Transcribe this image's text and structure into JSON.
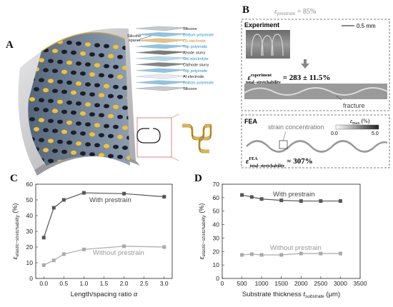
{
  "panels": {
    "A": "A",
    "B": "B",
    "C": "C",
    "D": "D"
  },
  "panelA": {
    "layers": [
      {
        "text": "Silicone",
        "color": "#222222"
      },
      {
        "text": "Bottom polyimide",
        "color": "#1a8fd0"
      },
      {
        "text": "Cu electrode",
        "color": "#d08a1a"
      },
      {
        "text": "Top polyimide",
        "color": "#1a8fd0"
      },
      {
        "text": "Anode slurry",
        "color": "#222222"
      },
      {
        "text": "Gel electrolyte",
        "color": "#1a8fd0"
      },
      {
        "text": "Cathode slurry",
        "color": "#222222"
      },
      {
        "text": "Top polyimide",
        "color": "#1a8fd0"
      },
      {
        "text": "Al electrode",
        "color": "#222222"
      },
      {
        "text": "Bottom polyimide",
        "color": "#1a8fd0"
      },
      {
        "text": "Silicone",
        "color": "#222222"
      }
    ],
    "spacer_label_1": "Silicone",
    "spacer_label_2": "spacer"
  },
  "panelB": {
    "prestrain_symbol": "ε",
    "prestrain_sub": "prestrain",
    "prestrain_value": " = 85%",
    "experiment_title": "Experiment",
    "scale_bar": "0.5 mm",
    "exp_sup": "experiment",
    "exp_sub": "total−stretchability",
    "exp_value": " = 283 ± 11.5%",
    "fracture_label": "fracture",
    "fea_title": "FEA",
    "strain_concentration": "strain concentration",
    "cb_label": "ε",
    "cb_sub": "max",
    "cb_unit": " (%)",
    "cb_min": "0.0",
    "cb_max": "5.0",
    "fea_sup": "FEA",
    "fea_sub": "total−stretchability",
    "fea_value": " = 307%"
  },
  "chart_data": [
    {
      "type": "line",
      "xlabel_main": "Length/spacing ratio ",
      "xlabel_symbol": "α",
      "ylabel_symbol": "ε",
      "ylabel_sub": "elastic−stretchability",
      "ylabel_unit": " (%)",
      "xlim": [
        -0.2,
        3.2
      ],
      "ylim": [
        0,
        60
      ],
      "xticks": [
        0.0,
        0.5,
        1.0,
        1.5,
        2.0,
        2.5,
        3.0
      ],
      "xtick_labels": [
        "0.0",
        "0.5",
        "1.0",
        "1.5",
        "2.0",
        "2.5",
        "3.0"
      ],
      "yticks": [
        0,
        10,
        20,
        30,
        40,
        50,
        60
      ],
      "grid": false,
      "series": [
        {
          "name": "With prestrain",
          "color": "#555555",
          "x": [
            0.0,
            0.25,
            0.5,
            1.0,
            2.0,
            3.0
          ],
          "y": [
            26,
            45,
            50,
            54.5,
            54,
            52
          ]
        },
        {
          "name": "Without prestrain",
          "color": "#aaaaaa",
          "x": [
            0.0,
            0.25,
            0.5,
            1.0,
            2.0,
            3.0
          ],
          "y": [
            8.5,
            11.5,
            15.5,
            18.5,
            20.5,
            20
          ]
        }
      ]
    },
    {
      "type": "line",
      "xlabel_main": "Substrate thickness ",
      "xlabel_symbol": "t",
      "xlabel_sub": "substrate",
      "xlabel_unit": " (μm)",
      "ylabel_symbol": "ε",
      "ylabel_sub": "elastic−stretchability",
      "ylabel_unit": " (%)",
      "xlim": [
        0,
        3500
      ],
      "ylim": [
        0,
        70
      ],
      "xticks": [
        0,
        500,
        1000,
        1500,
        2000,
        2500,
        3000,
        3500
      ],
      "xtick_labels": [
        "0",
        "500",
        "1000",
        "1500",
        "2000",
        "2500",
        "3000",
        "3500"
      ],
      "yticks": [
        0,
        10,
        20,
        30,
        40,
        50,
        60,
        70
      ],
      "grid": false,
      "series": [
        {
          "name": "With prestrain",
          "color": "#555555",
          "x": [
            500,
            750,
            1000,
            1500,
            2000,
            2500,
            3000
          ],
          "y": [
            62,
            60.5,
            59,
            58,
            57.5,
            57.5,
            57.5
          ]
        },
        {
          "name": "Without prestrain",
          "color": "#aaaaaa",
          "x": [
            500,
            750,
            1000,
            1500,
            2000,
            2500,
            3000
          ],
          "y": [
            17.5,
            18,
            17.5,
            17.5,
            18.5,
            18.5,
            18.5
          ]
        }
      ]
    }
  ]
}
